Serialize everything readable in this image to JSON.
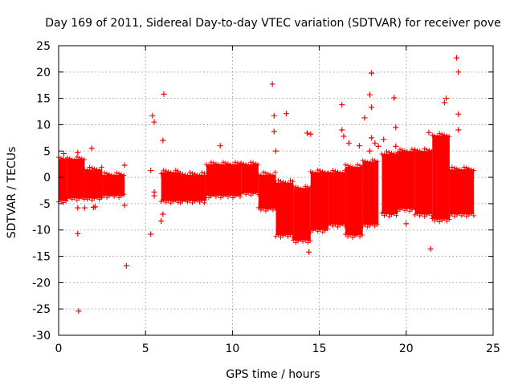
{
  "chart_data": {
    "type": "scatter",
    "title": "Day 169 of 2011, Sidereal Day-to-day VTEC variation (SDTVAR) for receiver pove",
    "xlabel": "GPS time / hours",
    "ylabel": "SDTVAR / TECUs",
    "xlim": [
      0,
      25
    ],
    "ylim": [
      -30,
      25
    ],
    "xticks": [
      0,
      5,
      10,
      15,
      20,
      25
    ],
    "yticks": [
      -30,
      -25,
      -20,
      -15,
      -10,
      -5,
      0,
      5,
      10,
      15,
      20,
      25
    ],
    "xtick_labels": [
      "0",
      "5",
      "10",
      "15",
      "20",
      "25"
    ],
    "ytick_labels": [
      "-30",
      "-25",
      "-20",
      "-15",
      "-10",
      "-5",
      "0",
      "5",
      "10",
      "15",
      "20",
      "25"
    ],
    "grid": true,
    "marker": "+",
    "color": "#ff0000",
    "bands": [
      {
        "x0": 0.0,
        "x1": 0.5,
        "lo": -4.5,
        "hi": 3.5
      },
      {
        "x0": 0.5,
        "x1": 1.5,
        "lo": -4.0,
        "hi": 3.5
      },
      {
        "x0": 1.5,
        "x1": 2.5,
        "lo": -4.0,
        "hi": 1.5
      },
      {
        "x0": 2.5,
        "x1": 3.8,
        "lo": -3.5,
        "hi": 0.5
      },
      {
        "x0": 5.9,
        "x1": 7.0,
        "lo": -4.5,
        "hi": 1.0
      },
      {
        "x0": 7.0,
        "x1": 8.5,
        "lo": -4.5,
        "hi": 0.5
      },
      {
        "x0": 8.5,
        "x1": 10.5,
        "lo": -3.5,
        "hi": 2.5
      },
      {
        "x0": 10.5,
        "x1": 11.5,
        "lo": -3.0,
        "hi": 2.5
      },
      {
        "x0": 11.5,
        "x1": 12.5,
        "lo": -6.0,
        "hi": 0.5
      },
      {
        "x0": 12.5,
        "x1": 13.5,
        "lo": -11.0,
        "hi": -1.0
      },
      {
        "x0": 13.5,
        "x1": 14.5,
        "lo": -12.0,
        "hi": -2.0
      },
      {
        "x0": 14.5,
        "x1": 15.5,
        "lo": -10.0,
        "hi": 1.0
      },
      {
        "x0": 15.5,
        "x1": 16.5,
        "lo": -9.0,
        "hi": 1.0
      },
      {
        "x0": 16.5,
        "x1": 17.5,
        "lo": -11.0,
        "hi": 2.0
      },
      {
        "x0": 17.5,
        "x1": 18.4,
        "lo": -9.0,
        "hi": 3.0
      },
      {
        "x0": 18.6,
        "x1": 19.5,
        "lo": -7.0,
        "hi": 4.5
      },
      {
        "x0": 19.5,
        "x1": 20.5,
        "lo": -6.0,
        "hi": 5.0
      },
      {
        "x0": 20.5,
        "x1": 21.5,
        "lo": -7.0,
        "hi": 5.0
      },
      {
        "x0": 21.5,
        "x1": 22.5,
        "lo": -8.0,
        "hi": 8.0
      },
      {
        "x0": 22.5,
        "x1": 23.9,
        "lo": -7.0,
        "hi": 1.5
      }
    ],
    "points": [
      [
        0.3,
        4.5
      ],
      [
        1.1,
        4.7
      ],
      [
        1.1,
        -5.8
      ],
      [
        1.1,
        -10.7
      ],
      [
        1.15,
        -25.4
      ],
      [
        1.5,
        -5.8
      ],
      [
        1.9,
        5.5
      ],
      [
        2.0,
        -5.7
      ],
      [
        2.1,
        -5.6
      ],
      [
        3.8,
        2.3
      ],
      [
        3.8,
        -5.3
      ],
      [
        3.9,
        -16.8
      ],
      [
        5.3,
        1.3
      ],
      [
        5.3,
        -10.8
      ],
      [
        5.4,
        11.7
      ],
      [
        5.5,
        10.5
      ],
      [
        5.5,
        -3.5
      ],
      [
        5.5,
        -2.8
      ],
      [
        5.9,
        -8.3
      ],
      [
        6.05,
        15.8
      ],
      [
        6.0,
        7.0
      ],
      [
        6.0,
        -7.0
      ],
      [
        9.3,
        6.0
      ],
      [
        12.3,
        17.7
      ],
      [
        12.4,
        8.7
      ],
      [
        12.4,
        11.7
      ],
      [
        12.5,
        5.0
      ],
      [
        13.1,
        12.1
      ],
      [
        14.3,
        8.4
      ],
      [
        14.5,
        8.2
      ],
      [
        14.4,
        -14.2
      ],
      [
        16.3,
        13.8
      ],
      [
        16.3,
        9.0
      ],
      [
        16.4,
        7.8
      ],
      [
        16.7,
        6.5
      ],
      [
        17.3,
        6.0
      ],
      [
        17.6,
        11.3
      ],
      [
        17.9,
        5.0
      ],
      [
        17.9,
        15.7
      ],
      [
        18.0,
        13.3
      ],
      [
        18.0,
        19.8
      ],
      [
        18.2,
        6.5
      ],
      [
        18.0,
        7.5
      ],
      [
        18.4,
        5.9
      ],
      [
        18.7,
        7.2
      ],
      [
        19.3,
        15.1
      ],
      [
        19.4,
        9.5
      ],
      [
        19.4,
        5.9
      ],
      [
        20.0,
        -8.8
      ],
      [
        21.3,
        8.5
      ],
      [
        21.4,
        -13.6
      ],
      [
        22.3,
        15.0
      ],
      [
        22.2,
        14.2
      ],
      [
        22.9,
        22.7
      ],
      [
        23.0,
        20.0
      ],
      [
        23.0,
        12.0
      ],
      [
        23.0,
        9.0
      ],
      [
        23.5,
        1.5
      ]
    ]
  }
}
